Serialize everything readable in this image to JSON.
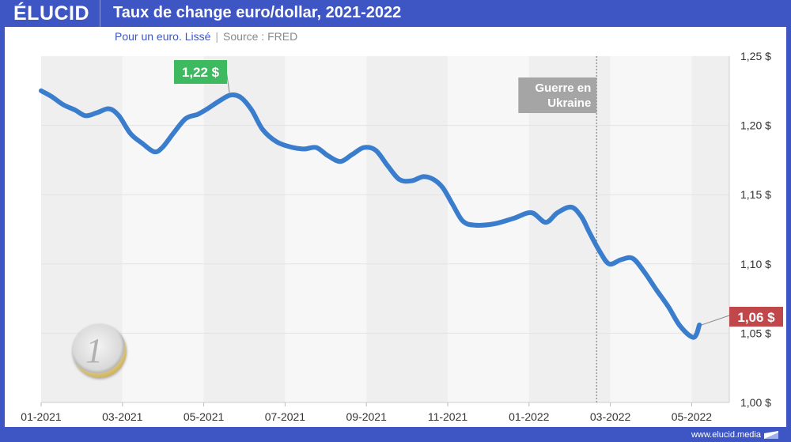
{
  "header": {
    "brand": "ÉLUCID",
    "title": "Taux de change euro/dollar, 2021-2022",
    "subtitle": "Pour un euro. Lissé",
    "source": "Source : FRED"
  },
  "footer": {
    "url": "www.elucid.media"
  },
  "colors": {
    "frame": "#3d56c4",
    "line": "#3a7dcc",
    "max_label": "#3dba5f",
    "last_label": "#c0474a",
    "event_label": "#a5a5a5",
    "band_dark": "#efefef",
    "band_light": "#f7f7f7"
  },
  "chart_data": {
    "type": "line",
    "title": "Taux de change euro/dollar, 2021-2022",
    "subtitle": "Pour un euro. Lissé | Source : FRED",
    "xlabel": "",
    "ylabel": "",
    "x_unit": "months since 01-2021",
    "xlim": [
      0,
      16.9
    ],
    "ylim": [
      1.0,
      1.25
    ],
    "y_ticks": [
      1.0,
      1.05,
      1.1,
      1.15,
      1.2,
      1.25
    ],
    "y_tick_labels": [
      "1,00 $",
      "1,05 $",
      "1,10 $",
      "1,15 $",
      "1,20 $",
      "1,25 $"
    ],
    "x_ticks": [
      0,
      2,
      4,
      6,
      8,
      10,
      12,
      14,
      16
    ],
    "x_tick_labels": [
      "01-2021",
      "03-2021",
      "05-2021",
      "07-2021",
      "09-2021",
      "11-2021",
      "01-2022",
      "03-2022",
      "05-2022"
    ],
    "grid": true,
    "legend": "none",
    "series": [
      {
        "name": "EUR/USD",
        "x": [
          0.0,
          0.25,
          0.54,
          0.84,
          1.09,
          1.36,
          1.67,
          1.91,
          2.2,
          2.49,
          2.78,
          2.98,
          3.27,
          3.56,
          3.85,
          4.09,
          4.4,
          4.67,
          4.92,
          5.18,
          5.45,
          5.8,
          6.19,
          6.48,
          6.77,
          7.06,
          7.36,
          7.65,
          7.94,
          8.23,
          8.52,
          8.81,
          9.11,
          9.4,
          9.65,
          9.88,
          10.12,
          10.37,
          10.66,
          11.15,
          11.63,
          12.06,
          12.41,
          12.7,
          13.04,
          13.29,
          13.48,
          13.74,
          13.97,
          14.26,
          14.55,
          14.84,
          15.14,
          15.43,
          15.72,
          16.05,
          16.19
        ],
        "values": [
          1.225,
          1.221,
          1.215,
          1.211,
          1.207,
          1.209,
          1.212,
          1.207,
          1.194,
          1.187,
          1.181,
          1.184,
          1.195,
          1.205,
          1.208,
          1.212,
          1.218,
          1.222,
          1.22,
          1.211,
          1.197,
          1.188,
          1.184,
          1.183,
          1.184,
          1.178,
          1.174,
          1.179,
          1.184,
          1.182,
          1.171,
          1.161,
          1.16,
          1.163,
          1.161,
          1.155,
          1.143,
          1.131,
          1.128,
          1.129,
          1.133,
          1.137,
          1.13,
          1.137,
          1.141,
          1.134,
          1.123,
          1.109,
          1.1,
          1.103,
          1.104,
          1.094,
          1.081,
          1.069,
          1.055,
          1.047,
          1.056
        ]
      }
    ],
    "annotations": [
      {
        "text": "1,22 $",
        "kind": "max",
        "x": 4.67,
        "y": 1.222
      },
      {
        "text": "1,06 $",
        "kind": "last",
        "x": 16.19,
        "y": 1.056
      },
      {
        "text_lines": [
          "Guerre en",
          "Ukraine"
        ],
        "kind": "event",
        "x": 13.8
      }
    ]
  }
}
